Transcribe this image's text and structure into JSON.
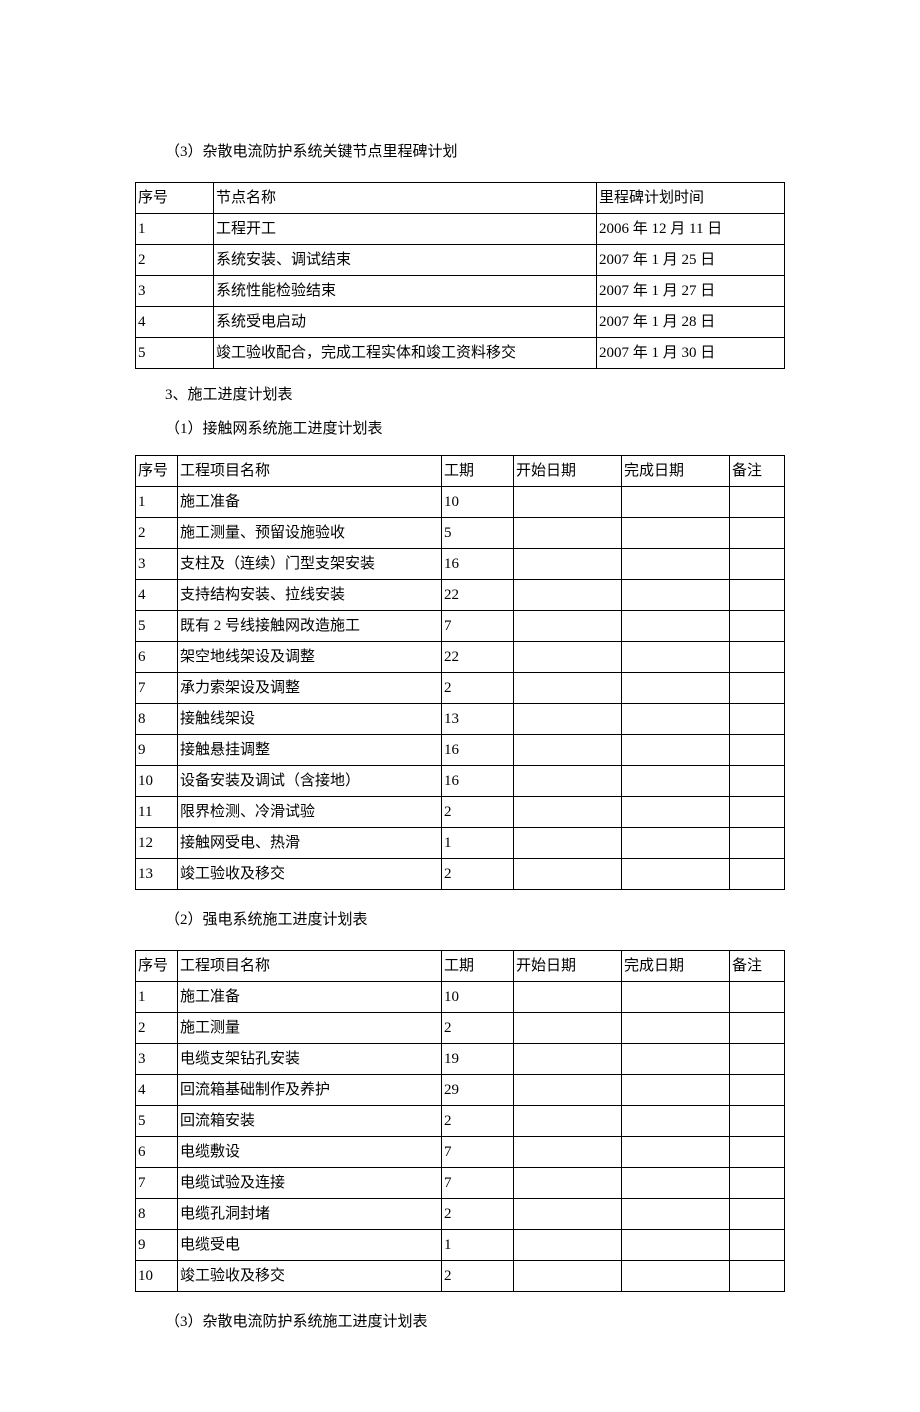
{
  "sections": {
    "s1": {
      "title": "（3）杂散电流防护系统关键节点里程碑计划",
      "table": {
        "headers": {
          "seq": "序号",
          "name": "节点名称",
          "time": "里程碑计划时间"
        },
        "rows": [
          {
            "seq": "1",
            "name": "工程开工",
            "time": "2006 年 12 月 11 日"
          },
          {
            "seq": "2",
            "name": "系统安装、调试结束",
            "time": "2007 年 1 月 25 日"
          },
          {
            "seq": "3",
            "name": "系统性能检验结束",
            "time": "2007 年 1 月 27 日"
          },
          {
            "seq": "4",
            "name": "系统受电启动",
            "time": "2007 年 1 月 28 日"
          },
          {
            "seq": "5",
            "name": "竣工验收配合，完成工程实体和竣工资料移交",
            "time": "2007 年 1 月 30 日"
          }
        ]
      }
    },
    "s2": {
      "title": "3、施工进度计划表",
      "sub1": {
        "title": "（1）接触网系统施工进度计划表",
        "headers": {
          "seq": "序号",
          "name": "工程项目名称",
          "period": "工期",
          "start": "开始日期",
          "end": "完成日期",
          "note": "备注"
        },
        "rows": [
          {
            "seq": "1",
            "name": "施工准备",
            "period": "10",
            "start": "",
            "end": "",
            "note": ""
          },
          {
            "seq": "2",
            "name": "施工测量、预留设施验收",
            "period": "5",
            "start": "",
            "end": "",
            "note": ""
          },
          {
            "seq": "3",
            "name": "支柱及（连续）门型支架安装",
            "period": "16",
            "start": "",
            "end": "",
            "note": ""
          },
          {
            "seq": "4",
            "name": "支持结构安装、拉线安装",
            "period": "22",
            "start": "",
            "end": "",
            "note": ""
          },
          {
            "seq": "5",
            "name": "既有 2 号线接触网改造施工",
            "period": "7",
            "start": "",
            "end": "",
            "note": ""
          },
          {
            "seq": "6",
            "name": "架空地线架设及调整",
            "period": "22",
            "start": "",
            "end": "",
            "note": ""
          },
          {
            "seq": "7",
            "name": "承力索架设及调整",
            "period": "2",
            "start": "",
            "end": "",
            "note": ""
          },
          {
            "seq": "8",
            "name": "接触线架设",
            "period": "13",
            "start": "",
            "end": "",
            "note": ""
          },
          {
            "seq": "9",
            "name": "接触悬挂调整",
            "period": "16",
            "start": "",
            "end": "",
            "note": ""
          },
          {
            "seq": "10",
            "name": "设备安装及调试（含接地）",
            "period": "16",
            "start": "",
            "end": "",
            "note": ""
          },
          {
            "seq": "11",
            "name": "限界检测、冷滑试验",
            "period": "2",
            "start": "",
            "end": "",
            "note": ""
          },
          {
            "seq": "12",
            "name": "接触网受电、热滑",
            "period": "1",
            "start": "",
            "end": "",
            "note": ""
          },
          {
            "seq": "13",
            "name": "竣工验收及移交",
            "period": "2",
            "start": "",
            "end": "",
            "note": ""
          }
        ]
      },
      "sub2": {
        "title": "（2）强电系统施工进度计划表",
        "headers": {
          "seq": "序号",
          "name": "工程项目名称",
          "period": "工期",
          "start": "开始日期",
          "end": "完成日期",
          "note": "备注"
        },
        "rows": [
          {
            "seq": "1",
            "name": "施工准备",
            "period": "10",
            "start": "",
            "end": "",
            "note": ""
          },
          {
            "seq": "2",
            "name": "施工测量",
            "period": "2",
            "start": "",
            "end": "",
            "note": ""
          },
          {
            "seq": "3",
            "name": "电缆支架钻孔安装",
            "period": "19",
            "start": "",
            "end": "",
            "note": ""
          },
          {
            "seq": "4",
            "name": "回流箱基础制作及养护",
            "period": "29",
            "start": "",
            "end": "",
            "note": ""
          },
          {
            "seq": "5",
            "name": "回流箱安装",
            "period": "2",
            "start": "",
            "end": "",
            "note": ""
          },
          {
            "seq": "6",
            "name": "电缆敷设",
            "period": "7",
            "start": "",
            "end": "",
            "note": ""
          },
          {
            "seq": "7",
            "name": "电缆试验及连接",
            "period": "7",
            "start": "",
            "end": "",
            "note": ""
          },
          {
            "seq": "8",
            "name": "电缆孔洞封堵",
            "period": "2",
            "start": "",
            "end": "",
            "note": ""
          },
          {
            "seq": "9",
            "name": "电缆受电",
            "period": "1",
            "start": "",
            "end": "",
            "note": ""
          },
          {
            "seq": "10",
            "name": "竣工验收及移交",
            "period": "2",
            "start": "",
            "end": "",
            "note": ""
          }
        ]
      },
      "sub3": {
        "title": "（3）杂散电流防护系统施工进度计划表"
      }
    }
  }
}
